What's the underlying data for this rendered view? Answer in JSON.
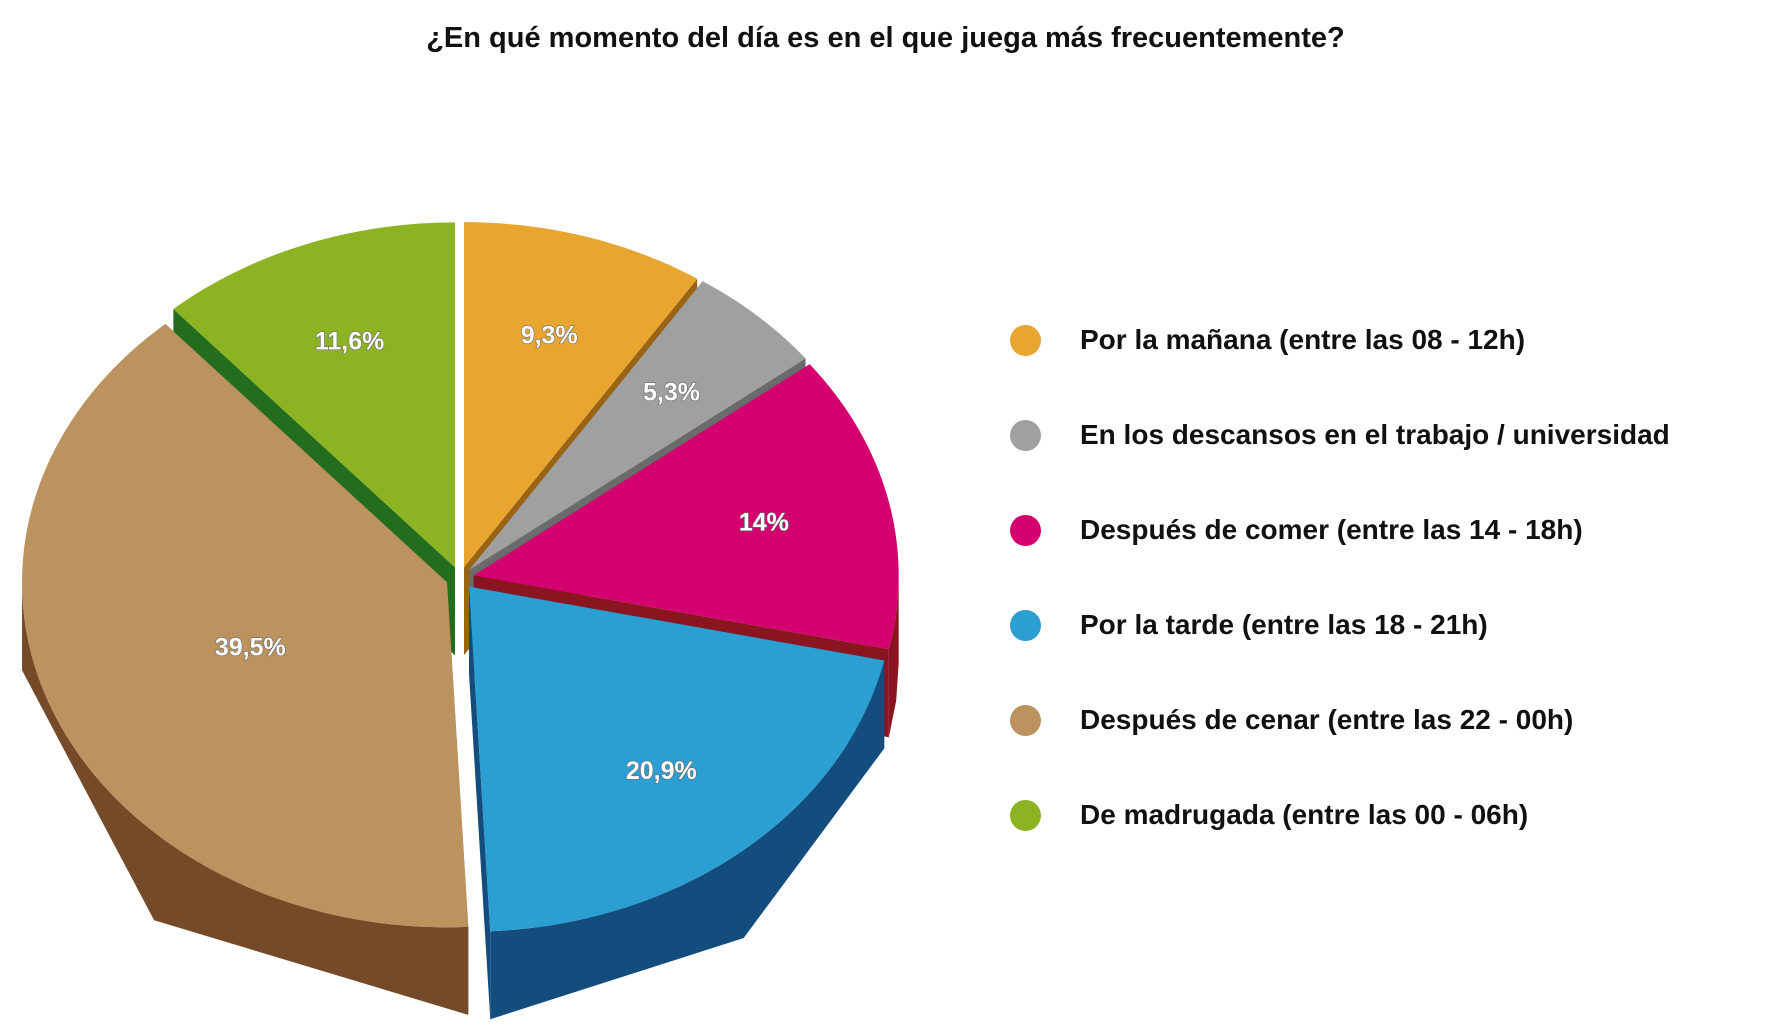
{
  "chart_data": {
    "type": "pie",
    "title": "¿En qué momento del día es en el que juega más frecuentemente?",
    "slices": [
      {
        "name": "Por la mañana (entre las 08 - 12h)",
        "value": 9.3,
        "label": "9,3%",
        "color": "#E8A631",
        "side_color": "#9A6412"
      },
      {
        "name": "En los descansos en el trabajo / universidad",
        "value": 5.3,
        "label": "5,3%",
        "color": "#A0A0A0",
        "side_color": "#6B6B6B"
      },
      {
        "name": "Después de comer (entre las 14 - 18h)",
        "value": 14.0,
        "label": "14%",
        "color": "#D4006F",
        "side_color": "#8A1420"
      },
      {
        "name": "Por la tarde (entre las 18 - 21h)",
        "value": 20.9,
        "label": "20,9%",
        "color": "#2B9ED2",
        "side_color": "#124D7E"
      },
      {
        "name": "Después de cenar (entre las 22 - 00h)",
        "value": 39.5,
        "label": "39,5%",
        "color": "#BC935F",
        "side_color": "#744A28"
      },
      {
        "name": "De madrugada (entre las 00 - 06h)",
        "value": 11.6,
        "label": "11,6%",
        "color": "#8CB422",
        "side_color": "#236E1E"
      }
    ],
    "legend_position": "right"
  }
}
